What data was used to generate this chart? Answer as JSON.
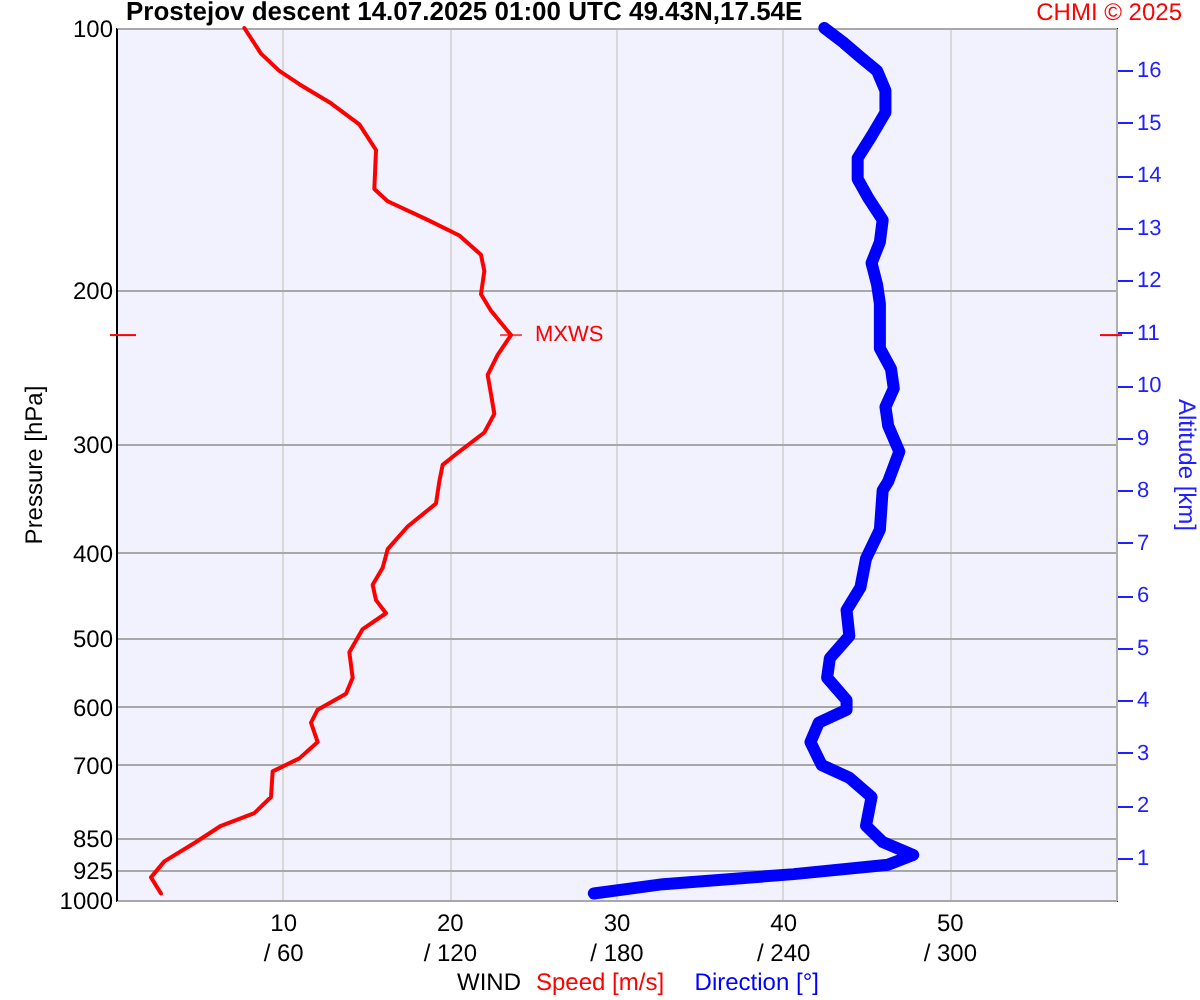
{
  "chart_data": {
    "type": "line",
    "title": "Prostejov  descent  14.07.2025 01:00 UTC  49.43N,17.54E",
    "xlabel": "WIND",
    "ylabel": "Pressure [hPa]",
    "y2label": "Altitude [km]",
    "annotations": [
      "CHMI © 2025",
      {
        "text": "MXWS",
        "x": 23.7,
        "y": 225
      }
    ],
    "xlim": [
      0,
      60
    ],
    "xticks": [
      10,
      20,
      30,
      40,
      50
    ],
    "x2lim": [
      0,
      360
    ],
    "x2ticks": [
      {
        "value": 60,
        "label": "/ 60"
      },
      {
        "value": 120,
        "label": "/ 120"
      },
      {
        "value": 180,
        "label": "/ 180"
      },
      {
        "value": 240,
        "label": "/ 240"
      },
      {
        "value": 300,
        "label": "/ 300"
      }
    ],
    "ylim": [
      1000,
      100
    ],
    "yticks": [
      100,
      200,
      300,
      400,
      500,
      600,
      700,
      850,
      925,
      1000
    ],
    "y2lim": [
      0.2,
      16.8
    ],
    "y2ticks": [
      1,
      2,
      3,
      4,
      5,
      6,
      7,
      8,
      9,
      10,
      11,
      12,
      13,
      14,
      15,
      16
    ],
    "log": "y",
    "grid": true,
    "legend": "bottom",
    "marker": "none",
    "line_style": "solid",
    "series": [
      {
        "name": "Speed [m/s]",
        "color": "#ff0000",
        "x": [
          7.7,
          8.7,
          9.8,
          11.0,
          12.9,
          14.6,
          15.6,
          15.5,
          16.3,
          18.7,
          20.6,
          21.9,
          22.1,
          21.9,
          22.5,
          23.7,
          22.9,
          22.3,
          22.5,
          22.7,
          22.1,
          20.6,
          19.6,
          19.4,
          19.2,
          17.5,
          16.3,
          16.0,
          15.4,
          15.6,
          16.2,
          14.8,
          14.0,
          14.2,
          13.8,
          12.1,
          11.7,
          12.1,
          11.0,
          9.4,
          9.3,
          8.3,
          6.3,
          4.8,
          2.9,
          2.1,
          2.7
        ],
        "values": [
          100,
          107,
          112,
          116,
          122,
          129,
          138,
          153,
          158,
          166,
          173,
          182,
          190,
          202,
          211,
          225,
          237,
          250,
          263,
          277,
          291,
          306,
          317,
          331,
          351,
          373,
          396,
          416,
          435,
          453,
          469,
          489,
          520,
          556,
          580,
          605,
          626,
          659,
          688,
          712,
          762,
          795,
          822,
          858,
          903,
          942,
          983
        ]
      },
      {
        "name": "Direction [°]",
        "color": "#0000ff",
        "axis": "x2",
        "x": [
          255,
          262,
          268,
          274,
          277,
          277,
          272,
          267,
          267,
          271,
          276,
          275,
          272,
          274,
          275,
          275,
          279,
          280,
          277,
          278,
          282,
          278,
          276,
          275,
          270,
          268,
          263,
          264,
          257,
          256,
          263,
          263,
          253,
          250,
          254,
          264,
          272,
          270,
          276,
          287,
          278,
          244,
          197,
          172
        ],
        "values": [
          100,
          104,
          108,
          112,
          118,
          125,
          133,
          141,
          149,
          157,
          166,
          176,
          186,
          197,
          207,
          233,
          246,
          259,
          272,
          286,
          306,
          331,
          339,
          376,
          406,
          438,
          465,
          498,
          528,
          556,
          590,
          605,
          626,
          659,
          700,
          724,
          762,
          822,
          858,
          888,
          911,
          934,
          959,
          983
        ]
      }
    ]
  }
}
